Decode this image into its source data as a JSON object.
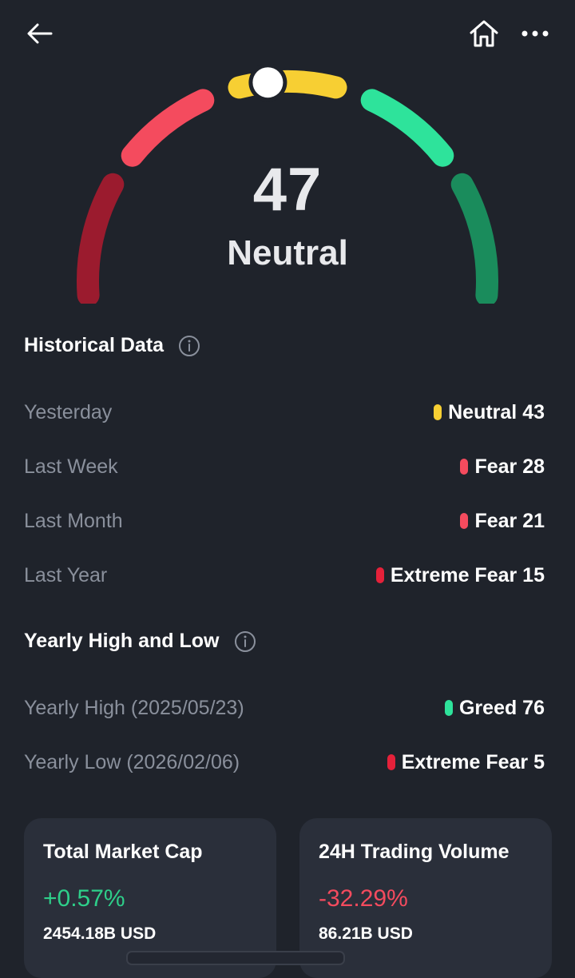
{
  "header": {
    "back_icon": "arrow-left-icon",
    "home_icon": "home-icon",
    "more_icon": "more-horizontal-icon"
  },
  "gauge": {
    "value": "47",
    "label": "Neutral",
    "level": 47,
    "colors": {
      "extreme_fear": "#9b1b2e",
      "fear": "#f44b5e",
      "neutral": "#f7cf33",
      "greed": "#2ee39b",
      "extreme_greed": "#1a8c5c",
      "indicator": "#ffffff"
    }
  },
  "historical": {
    "title": "Historical Data",
    "info_icon": "info-icon",
    "rows": [
      {
        "label": "Yesterday",
        "value": "Neutral 43",
        "color": "#f7cf33"
      },
      {
        "label": "Last Week",
        "value": "Fear 28",
        "color": "#f44b5e"
      },
      {
        "label": "Last Month",
        "value": "Fear 21",
        "color": "#f44b5e"
      },
      {
        "label": "Last Year",
        "value": "Extreme Fear 15",
        "color": "#e5213a"
      }
    ]
  },
  "yearly": {
    "title": "Yearly High and Low",
    "info_icon": "info-icon",
    "rows": [
      {
        "label": "Yearly High (2025/05/23)",
        "value": "Greed 76",
        "color": "#2ee39b"
      },
      {
        "label": "Yearly Low (2026/02/06)",
        "value": "Extreme Fear 5",
        "color": "#e5213a"
      }
    ]
  },
  "cards": [
    {
      "title": "Total Market Cap",
      "change": "+0.57%",
      "change_color": "#2ecf8a",
      "amount": "2454.18B USD"
    },
    {
      "title": "24H Trading Volume",
      "change": "-32.29%",
      "change_color": "#f44b5e",
      "amount": "86.21B USD"
    }
  ]
}
